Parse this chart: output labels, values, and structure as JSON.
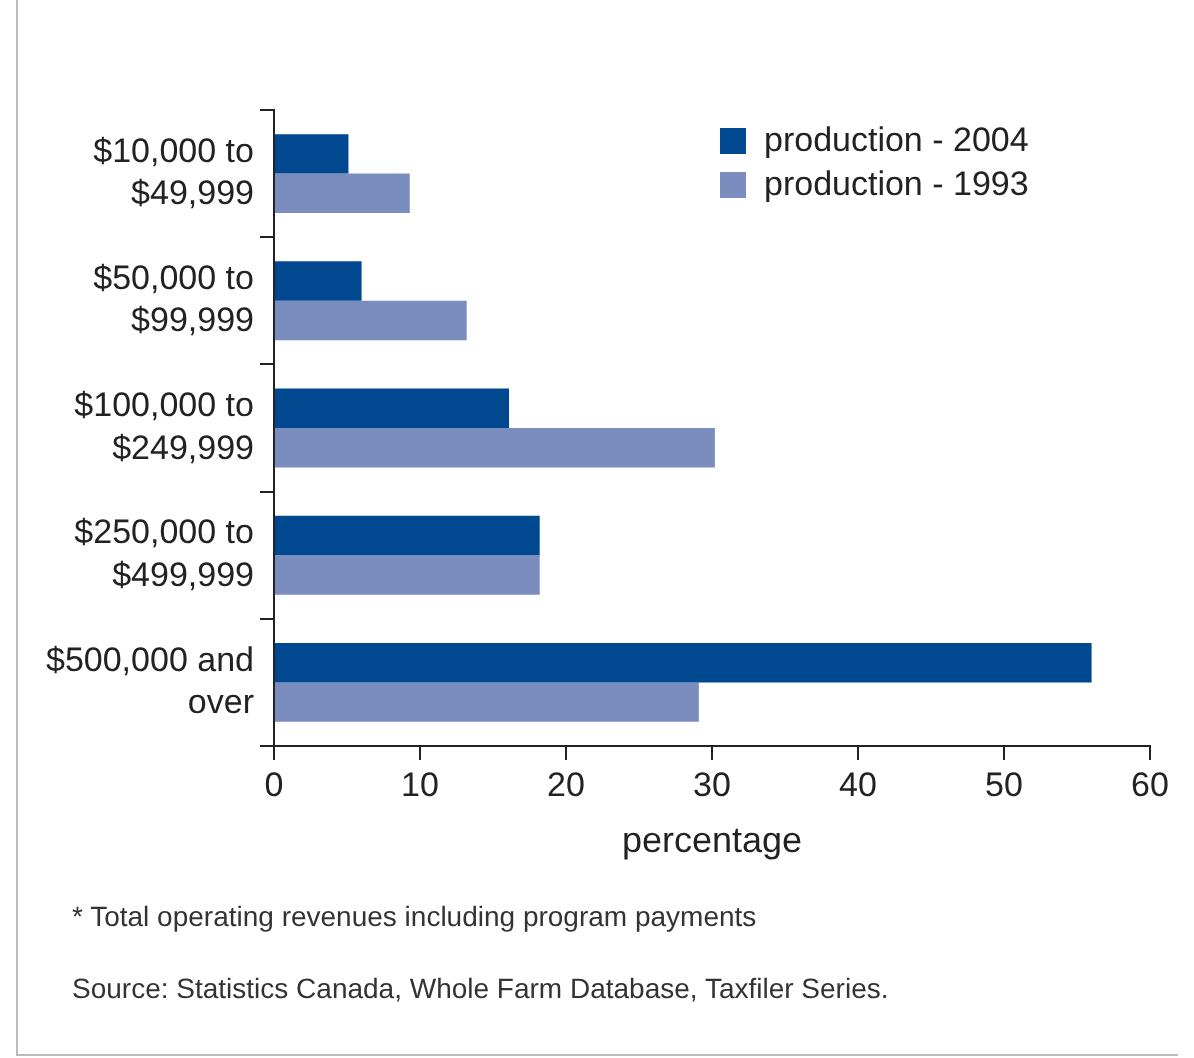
{
  "chart_data": {
    "type": "bar",
    "orientation": "horizontal",
    "categories": [
      "$10,000 to $49,999",
      "$50,000 to $99,999",
      "$100,000 to $249,999",
      "$250,000 to $499,999",
      "$500,000 and over"
    ],
    "series": [
      {
        "name": "production - 2004",
        "color": "#004990",
        "values": [
          5.1,
          6.0,
          16.1,
          18.2,
          56.0
        ]
      },
      {
        "name": "production - 1993",
        "color": "#7b8dbf",
        "values": [
          9.3,
          13.2,
          30.2,
          18.2,
          29.1
        ]
      }
    ],
    "xlabel": "percentage",
    "xlim": [
      0,
      60
    ],
    "xticks": [
      0,
      10,
      20,
      30,
      40,
      50,
      60
    ],
    "grid": false,
    "legend": "top right",
    "annotations": [
      "* Total operating revenues including program payments",
      "Source: Statistics Canada, Whole Farm Database, Taxfiler Series."
    ]
  }
}
